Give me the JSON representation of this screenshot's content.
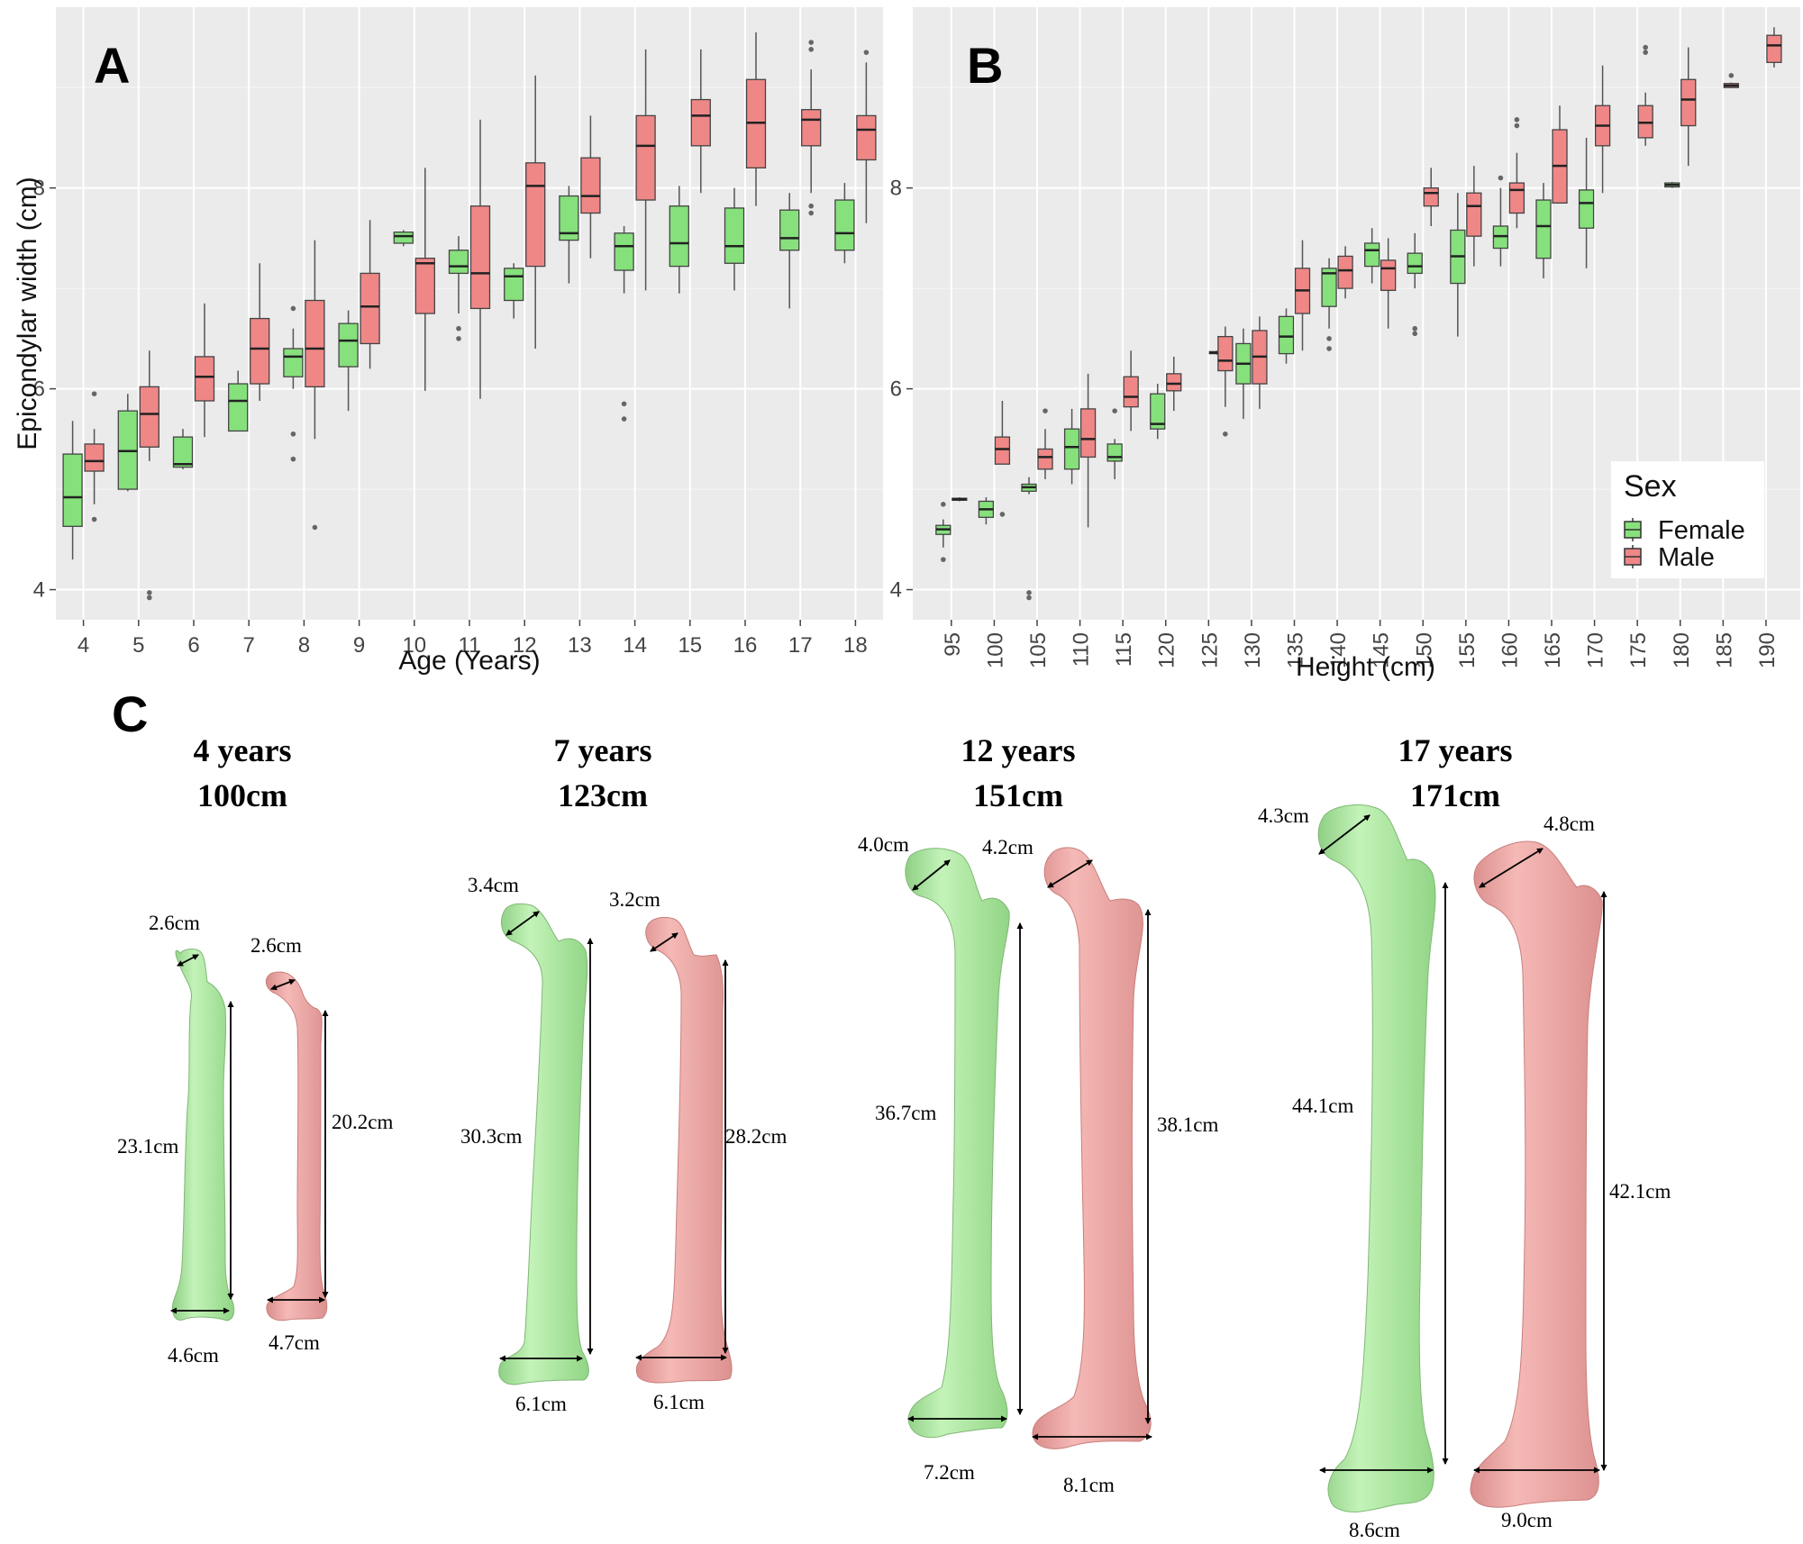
{
  "colors": {
    "female": "#86e07c",
    "male": "#ef8787",
    "panel_bg": "#ebebeb",
    "grid": "#ffffff"
  },
  "chart_data": [
    {
      "panel": "A",
      "type": "box",
      "xlabel": "Age (Years)",
      "ylabel": "Epicondylar width (cm)",
      "ylim": [
        3.7,
        9.8
      ],
      "yticks": [
        4,
        6,
        8
      ],
      "categories": [
        "4",
        "5",
        "6",
        "7",
        "8",
        "9",
        "10",
        "11",
        "12",
        "13",
        "14",
        "15",
        "16",
        "17",
        "18"
      ],
      "series": [
        {
          "name": "Female",
          "boxes": [
            {
              "x": "4",
              "min": 4.3,
              "q1": 4.63,
              "median": 4.92,
              "q3": 5.35,
              "max": 5.68,
              "outliers": []
            },
            {
              "x": "5",
              "min": 4.98,
              "q1": 5.0,
              "median": 5.38,
              "q3": 5.78,
              "max": 5.95,
              "outliers": []
            },
            {
              "x": "6",
              "min": 5.2,
              "q1": 5.22,
              "median": 5.25,
              "q3": 5.52,
              "max": 5.6,
              "outliers": []
            },
            {
              "x": "7",
              "min": 5.58,
              "q1": 5.58,
              "median": 5.88,
              "q3": 6.05,
              "max": 6.18,
              "outliers": []
            },
            {
              "x": "8",
              "min": 6.0,
              "q1": 6.12,
              "median": 6.32,
              "q3": 6.4,
              "max": 6.6,
              "outliers": [
                5.3,
                5.55,
                6.8
              ]
            },
            {
              "x": "9",
              "min": 5.78,
              "q1": 6.22,
              "median": 6.48,
              "q3": 6.65,
              "max": 6.78,
              "outliers": []
            },
            {
              "x": "10",
              "min": 7.42,
              "q1": 7.45,
              "median": 7.52,
              "q3": 7.56,
              "max": 7.58,
              "outliers": []
            },
            {
              "x": "11",
              "min": 6.75,
              "q1": 7.15,
              "median": 7.22,
              "q3": 7.38,
              "max": 7.52,
              "outliers": [
                6.5,
                6.6
              ]
            },
            {
              "x": "12",
              "min": 6.7,
              "q1": 6.88,
              "median": 7.12,
              "q3": 7.2,
              "max": 7.25,
              "outliers": []
            },
            {
              "x": "13",
              "min": 7.05,
              "q1": 7.48,
              "median": 7.55,
              "q3": 7.92,
              "max": 8.02,
              "outliers": []
            },
            {
              "x": "14",
              "min": 6.95,
              "q1": 7.18,
              "median": 7.42,
              "q3": 7.55,
              "max": 7.62,
              "outliers": [
                5.7,
                5.85
              ]
            },
            {
              "x": "15",
              "min": 6.95,
              "q1": 7.22,
              "median": 7.45,
              "q3": 7.82,
              "max": 8.02,
              "outliers": []
            },
            {
              "x": "16",
              "min": 6.98,
              "q1": 7.25,
              "median": 7.42,
              "q3": 7.8,
              "max": 8.0,
              "outliers": []
            },
            {
              "x": "17",
              "min": 6.8,
              "q1": 7.38,
              "median": 7.5,
              "q3": 7.78,
              "max": 7.95,
              "outliers": []
            },
            {
              "x": "18",
              "min": 7.25,
              "q1": 7.38,
              "median": 7.55,
              "q3": 7.88,
              "max": 8.05,
              "outliers": []
            }
          ]
        },
        {
          "name": "Male",
          "boxes": [
            {
              "x": "4",
              "min": 4.85,
              "q1": 5.18,
              "median": 5.28,
              "q3": 5.45,
              "max": 5.6,
              "outliers": [
                4.7,
                5.95
              ]
            },
            {
              "x": "5",
              "min": 5.28,
              "q1": 5.42,
              "median": 5.75,
              "q3": 6.02,
              "max": 6.38,
              "outliers": [
                3.92,
                3.97
              ]
            },
            {
              "x": "6",
              "min": 5.52,
              "q1": 5.88,
              "median": 6.12,
              "q3": 6.32,
              "max": 6.85,
              "outliers": []
            },
            {
              "x": "7",
              "min": 5.88,
              "q1": 6.05,
              "median": 6.4,
              "q3": 6.7,
              "max": 7.25,
              "outliers": []
            },
            {
              "x": "8",
              "min": 5.5,
              "q1": 6.02,
              "median": 6.4,
              "q3": 6.88,
              "max": 7.48,
              "outliers": [
                4.62
              ]
            },
            {
              "x": "9",
              "min": 6.2,
              "q1": 6.45,
              "median": 6.82,
              "q3": 7.15,
              "max": 7.68,
              "outliers": []
            },
            {
              "x": "10",
              "min": 5.98,
              "q1": 6.75,
              "median": 7.25,
              "q3": 7.3,
              "max": 8.2,
              "outliers": []
            },
            {
              "x": "11",
              "min": 5.9,
              "q1": 6.8,
              "median": 7.15,
              "q3": 7.82,
              "max": 8.68,
              "outliers": []
            },
            {
              "x": "12",
              "min": 6.4,
              "q1": 7.22,
              "median": 8.02,
              "q3": 8.25,
              "max": 9.12,
              "outliers": []
            },
            {
              "x": "13",
              "min": 7.3,
              "q1": 7.75,
              "median": 7.92,
              "q3": 8.3,
              "max": 8.72,
              "outliers": []
            },
            {
              "x": "14",
              "min": 6.98,
              "q1": 7.88,
              "median": 8.42,
              "q3": 8.72,
              "max": 9.38,
              "outliers": []
            },
            {
              "x": "15",
              "min": 7.95,
              "q1": 8.42,
              "median": 8.72,
              "q3": 8.88,
              "max": 9.38,
              "outliers": []
            },
            {
              "x": "16",
              "min": 7.82,
              "q1": 8.2,
              "median": 8.65,
              "q3": 9.08,
              "max": 9.55,
              "outliers": []
            },
            {
              "x": "17",
              "min": 7.95,
              "q1": 8.42,
              "median": 8.68,
              "q3": 8.78,
              "max": 9.18,
              "outliers": [
                7.75,
                7.82,
                9.38,
                9.45
              ]
            },
            {
              "x": "18",
              "min": 7.65,
              "q1": 8.28,
              "median": 8.58,
              "q3": 8.72,
              "max": 9.25,
              "outliers": [
                9.35
              ]
            }
          ]
        }
      ]
    },
    {
      "panel": "B",
      "type": "box",
      "xlabel": "Height (cm)",
      "ylabel": "",
      "ylim": [
        3.7,
        9.8
      ],
      "yticks": [
        4,
        6,
        8
      ],
      "categories": [
        "95",
        "100",
        "105",
        "110",
        "115",
        "120",
        "125",
        "130",
        "135",
        "140",
        "145",
        "150",
        "155",
        "160",
        "165",
        "170",
        "175",
        "180",
        "185",
        "190"
      ],
      "series": [
        {
          "name": "Female",
          "boxes": [
            {
              "x": "95",
              "min": 4.42,
              "q1": 4.55,
              "median": 4.6,
              "q3": 4.64,
              "max": 4.7,
              "outliers": [
                4.3,
                4.85
              ]
            },
            {
              "x": "100",
              "min": 4.65,
              "q1": 4.72,
              "median": 4.8,
              "q3": 4.88,
              "max": 4.92,
              "outliers": []
            },
            {
              "x": "105",
              "min": 4.95,
              "q1": 4.98,
              "median": 5.02,
              "q3": 5.05,
              "max": 5.12,
              "outliers": [
                3.92,
                3.97
              ]
            },
            {
              "x": "110",
              "min": 5.05,
              "q1": 5.2,
              "median": 5.42,
              "q3": 5.6,
              "max": 5.8,
              "outliers": []
            },
            {
              "x": "115",
              "min": 5.1,
              "q1": 5.28,
              "median": 5.32,
              "q3": 5.45,
              "max": 5.5,
              "outliers": [
                5.78
              ]
            },
            {
              "x": "120",
              "min": 5.5,
              "q1": 5.6,
              "median": 5.65,
              "q3": 5.95,
              "max": 6.05,
              "outliers": []
            },
            {
              "x": "130",
              "min": 5.7,
              "q1": 6.05,
              "median": 6.25,
              "q3": 6.45,
              "max": 6.6,
              "outliers": []
            },
            {
              "x": "135",
              "min": 6.25,
              "q1": 6.35,
              "median": 6.52,
              "q3": 6.72,
              "max": 6.8,
              "outliers": []
            },
            {
              "x": "140",
              "min": 6.6,
              "q1": 6.82,
              "median": 7.15,
              "q3": 7.2,
              "max": 7.3,
              "outliers": [
                6.4,
                6.5
              ]
            },
            {
              "x": "145",
              "min": 7.05,
              "q1": 7.22,
              "median": 7.38,
              "q3": 7.45,
              "max": 7.6,
              "outliers": []
            },
            {
              "x": "150",
              "min": 7.0,
              "q1": 7.15,
              "median": 7.22,
              "q3": 7.35,
              "max": 7.55,
              "outliers": [
                6.55,
                6.6
              ]
            },
            {
              "x": "155",
              "min": 6.52,
              "q1": 7.05,
              "median": 7.32,
              "q3": 7.58,
              "max": 7.95,
              "outliers": []
            },
            {
              "x": "160",
              "min": 7.22,
              "q1": 7.4,
              "median": 7.52,
              "q3": 7.62,
              "max": 8.0,
              "outliers": [
                8.1
              ]
            },
            {
              "x": "165",
              "min": 7.1,
              "q1": 7.3,
              "median": 7.62,
              "q3": 7.88,
              "max": 8.05,
              "outliers": []
            },
            {
              "x": "170",
              "min": 7.2,
              "q1": 7.6,
              "median": 7.85,
              "q3": 7.98,
              "max": 8.5,
              "outliers": []
            },
            {
              "x": "180",
              "min": 8.0,
              "q1": 8.01,
              "median": 8.03,
              "q3": 8.05,
              "max": 8.06,
              "outliers": []
            }
          ]
        },
        {
          "name": "Male",
          "boxes": [
            {
              "x": "95",
              "min": 4.88,
              "q1": 4.89,
              "median": 4.9,
              "q3": 4.91,
              "max": 4.92,
              "outliers": []
            },
            {
              "x": "100",
              "min": 5.25,
              "q1": 5.25,
              "median": 5.4,
              "q3": 5.52,
              "max": 5.88,
              "outliers": [
                4.75
              ]
            },
            {
              "x": "105",
              "min": 5.1,
              "q1": 5.2,
              "median": 5.32,
              "q3": 5.4,
              "max": 5.6,
              "outliers": [
                5.78
              ]
            },
            {
              "x": "110",
              "min": 4.62,
              "q1": 5.32,
              "median": 5.5,
              "q3": 5.8,
              "max": 6.15,
              "outliers": []
            },
            {
              "x": "115",
              "min": 5.58,
              "q1": 5.82,
              "median": 5.92,
              "q3": 6.12,
              "max": 6.38,
              "outliers": []
            },
            {
              "x": "120",
              "min": 5.78,
              "q1": 5.98,
              "median": 6.05,
              "q3": 6.15,
              "max": 6.32,
              "outliers": []
            },
            {
              "x": "125",
              "min": 6.34,
              "q1": 6.35,
              "median": 6.36,
              "q3": 6.37,
              "max": 6.38,
              "outliers": []
            },
            {
              "x": "126",
              "min": 5.82,
              "q1": 6.18,
              "median": 6.28,
              "q3": 6.52,
              "max": 6.62,
              "outliers": [
                5.55
              ]
            },
            {
              "x": "130",
              "min": 5.8,
              "q1": 6.05,
              "median": 6.32,
              "q3": 6.58,
              "max": 6.72,
              "outliers": []
            },
            {
              "x": "135",
              "min": 6.38,
              "q1": 6.75,
              "median": 6.98,
              "q3": 7.2,
              "max": 7.48,
              "outliers": []
            },
            {
              "x": "140",
              "min": 6.9,
              "q1": 7.0,
              "median": 7.18,
              "q3": 7.32,
              "max": 7.42,
              "outliers": []
            },
            {
              "x": "145",
              "min": 6.6,
              "q1": 6.98,
              "median": 7.2,
              "q3": 7.28,
              "max": 7.5,
              "outliers": []
            },
            {
              "x": "150",
              "min": 7.62,
              "q1": 7.82,
              "median": 7.95,
              "q3": 8.0,
              "max": 8.2,
              "outliers": []
            },
            {
              "x": "155",
              "min": 7.22,
              "q1": 7.52,
              "median": 7.82,
              "q3": 7.95,
              "max": 8.22,
              "outliers": []
            },
            {
              "x": "160",
              "min": 7.6,
              "q1": 7.75,
              "median": 7.98,
              "q3": 8.05,
              "max": 8.35,
              "outliers": [
                8.62,
                8.68
              ]
            },
            {
              "x": "165",
              "min": 7.85,
              "q1": 7.85,
              "median": 8.22,
              "q3": 8.58,
              "max": 8.82,
              "outliers": []
            },
            {
              "x": "170",
              "min": 7.95,
              "q1": 8.42,
              "median": 8.62,
              "q3": 8.82,
              "max": 9.22,
              "outliers": []
            },
            {
              "x": "175",
              "min": 8.42,
              "q1": 8.5,
              "median": 8.65,
              "q3": 8.82,
              "max": 8.95,
              "outliers": [
                9.35,
                9.4
              ]
            },
            {
              "x": "180",
              "min": 8.22,
              "q1": 8.62,
              "median": 8.88,
              "q3": 9.08,
              "max": 9.4,
              "outliers": []
            },
            {
              "x": "185",
              "min": 9.0,
              "q1": 9.0,
              "median": 9.02,
              "q3": 9.04,
              "max": 9.05,
              "outliers": [
                9.12
              ]
            },
            {
              "x": "190",
              "min": 9.2,
              "q1": 9.25,
              "median": 9.42,
              "q3": 9.52,
              "max": 9.6,
              "outliers": []
            }
          ]
        }
      ]
    }
  ],
  "legend": {
    "title": "Sex",
    "items": [
      "Female",
      "Male"
    ]
  },
  "panel_c": {
    "groups": [
      {
        "age": "4 years",
        "height": "100cm",
        "female": {
          "head": "2.6cm",
          "length": "23.1cm",
          "condyle": "4.6cm"
        },
        "male": {
          "head": "2.6cm",
          "length": "20.2cm",
          "condyle": "4.7cm"
        }
      },
      {
        "age": "7 years",
        "height": "123cm",
        "female": {
          "head": "3.4cm",
          "length": "30.3cm",
          "condyle": "6.1cm"
        },
        "male": {
          "head": "3.2cm",
          "length": "28.2cm",
          "condyle": "6.1cm"
        }
      },
      {
        "age": "12 years",
        "height": "151cm",
        "female": {
          "head": "4.0cm",
          "length": "36.7cm",
          "condyle": "7.2cm"
        },
        "male": {
          "head": "4.2cm",
          "length": "38.1cm",
          "condyle": "8.1cm"
        }
      },
      {
        "age": "17 years",
        "height": "171cm",
        "female": {
          "head": "4.3cm",
          "length": "44.1cm",
          "condyle": "8.6cm"
        },
        "male": {
          "head": "4.8cm",
          "length": "42.1cm",
          "condyle": "9.0cm"
        }
      }
    ]
  },
  "labels": {
    "a": "A",
    "b": "B",
    "c": "C"
  }
}
